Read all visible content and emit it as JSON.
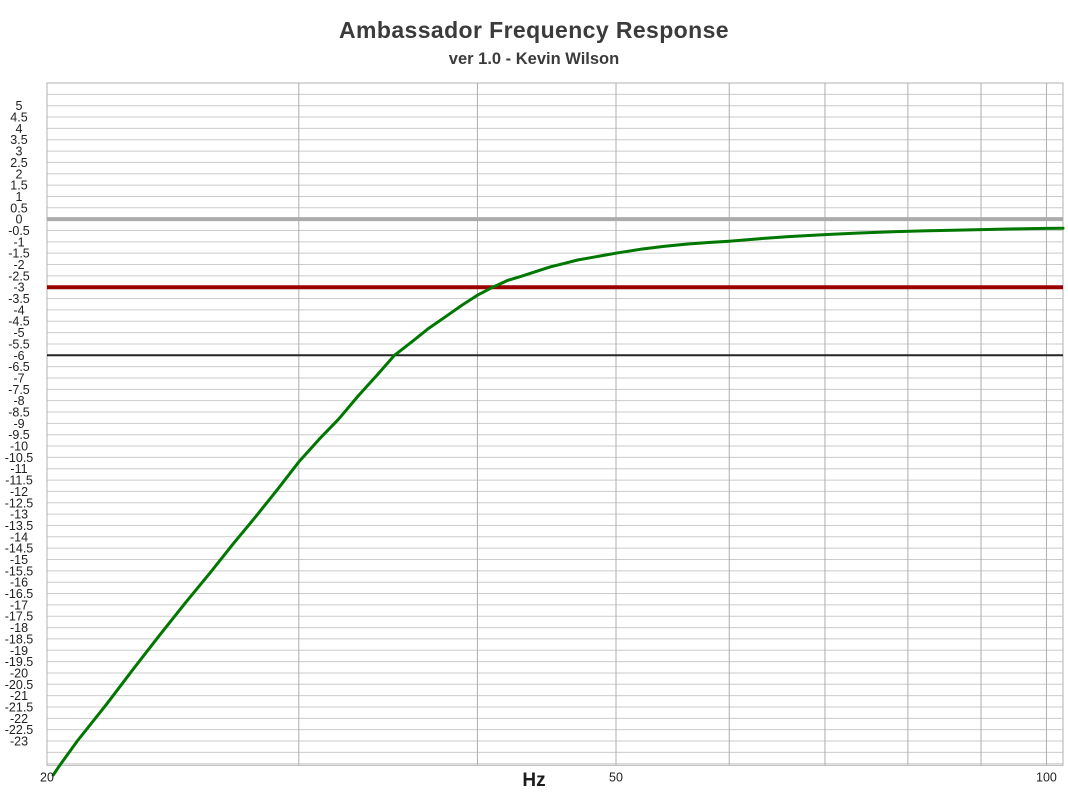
{
  "header": {
    "title": "Ambassador Frequency Response",
    "subtitle": "ver 1.0 - Kevin Wilson"
  },
  "chart_data": {
    "type": "line",
    "title": "Ambassador Frequency Response",
    "subtitle": "ver 1.0 - Kevin Wilson",
    "xlabel": "Hz",
    "ylabel": "",
    "x_scale": "log",
    "xlim": [
      20,
      102.7
    ],
    "ylim": [
      -24.07,
      6
    ],
    "x_tick_labels": [
      20,
      50,
      100
    ],
    "x_gridlines": [
      30,
      40,
      50,
      60,
      70,
      80,
      90,
      100
    ],
    "y_label_max": 5,
    "y_label_min": -23,
    "y_label_step": 0.5,
    "y_gridline_step": 0.5,
    "grid": true,
    "legend": "none",
    "colors": {
      "background": "#ffffff",
      "h_gridline": "#cbcbcb",
      "v_gridline": "#aeaeae",
      "border": "#b0b0b0",
      "tick_text": "#222222",
      "title_text": "#3b3b3b"
    },
    "reference_lines": [
      {
        "name": "zero-db-line",
        "value": 0,
        "color": "#ababab",
        "width": 4
      },
      {
        "name": "minus-6db-line",
        "value": -6,
        "color": "#262626",
        "width": 2
      },
      {
        "name": "minus-3db-line",
        "value": -3,
        "color": "#990000",
        "width": 4
      }
    ],
    "series": [
      {
        "name": "frequency-response",
        "color": "#007700",
        "width": 3,
        "points": [
          [
            20.2,
            -24.5
          ],
          [
            20.4,
            -24.1
          ],
          [
            21,
            -23.0
          ],
          [
            22,
            -21.4
          ],
          [
            23,
            -19.8
          ],
          [
            24,
            -18.3
          ],
          [
            25,
            -16.9
          ],
          [
            26,
            -15.6
          ],
          [
            27,
            -14.3
          ],
          [
            28,
            -13.1
          ],
          [
            29,
            -11.9
          ],
          [
            30,
            -10.7
          ],
          [
            31,
            -9.7
          ],
          [
            32,
            -8.8
          ],
          [
            33,
            -7.8
          ],
          [
            34,
            -6.9
          ],
          [
            35,
            -6.0
          ],
          [
            36,
            -5.4
          ],
          [
            37,
            -4.8
          ],
          [
            38,
            -4.3
          ],
          [
            39,
            -3.8
          ],
          [
            40,
            -3.35
          ],
          [
            41,
            -3.0
          ],
          [
            42,
            -2.7
          ],
          [
            43,
            -2.5
          ],
          [
            44,
            -2.3
          ],
          [
            45,
            -2.1
          ],
          [
            46,
            -1.95
          ],
          [
            47,
            -1.8
          ],
          [
            48,
            -1.7
          ],
          [
            49,
            -1.6
          ],
          [
            50,
            -1.5
          ],
          [
            52,
            -1.33
          ],
          [
            54,
            -1.2
          ],
          [
            56,
            -1.1
          ],
          [
            58,
            -1.03
          ],
          [
            60,
            -0.97
          ],
          [
            63,
            -0.86
          ],
          [
            66,
            -0.77
          ],
          [
            70,
            -0.68
          ],
          [
            74,
            -0.61
          ],
          [
            78,
            -0.56
          ],
          [
            82,
            -0.52
          ],
          [
            86,
            -0.49
          ],
          [
            90,
            -0.46
          ],
          [
            95,
            -0.43
          ],
          [
            100,
            -0.41
          ],
          [
            102.7,
            -0.4
          ]
        ]
      }
    ]
  }
}
